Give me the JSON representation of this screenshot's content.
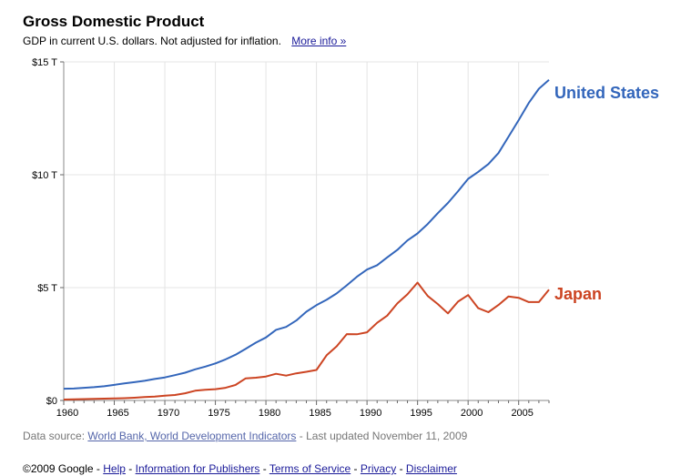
{
  "header": {
    "title": "Gross Domestic Product",
    "subtitle": "GDP in current U.S. dollars. Not adjusted for inflation.",
    "more_info_link": "More info »"
  },
  "source": {
    "prefix": "Data source:",
    "link": "World Bank, World Development Indicators",
    "suffix": "- Last updated November 11, 2009"
  },
  "footer": {
    "copyright": "©2009 Google",
    "links": [
      "Help",
      "Information for Publishers",
      "Terms of Service",
      "Privacy",
      "Disclaimer"
    ]
  },
  "chart_data": {
    "type": "line",
    "title": "Gross Domestic Product",
    "x": [
      1960,
      1961,
      1962,
      1963,
      1964,
      1965,
      1966,
      1967,
      1968,
      1969,
      1970,
      1971,
      1972,
      1973,
      1974,
      1975,
      1976,
      1977,
      1978,
      1979,
      1980,
      1981,
      1982,
      1983,
      1984,
      1985,
      1986,
      1987,
      1988,
      1989,
      1990,
      1991,
      1992,
      1993,
      1994,
      1995,
      1996,
      1997,
      1998,
      1999,
      2000,
      2001,
      2002,
      2003,
      2004,
      2005,
      2006,
      2007,
      2008
    ],
    "xlim": [
      1960,
      2008
    ],
    "ylim": [
      0,
      15
    ],
    "y_ticks": [
      0,
      5,
      10,
      15
    ],
    "y_tick_labels": [
      "$0",
      "$5 T",
      "$10 T",
      "$15 T"
    ],
    "x_ticks": [
      1960,
      1965,
      1970,
      1975,
      1980,
      1985,
      1990,
      1995,
      2000,
      2005
    ],
    "x_tick_labels": [
      "1960",
      "1965",
      "1970",
      "1975",
      "1980",
      "1985",
      "1990",
      "1995",
      "2000",
      "2005"
    ],
    "grid": true,
    "legend": "inline-right",
    "series": [
      {
        "name": "United States",
        "color": "#3366bb",
        "values": [
          0.52,
          0.53,
          0.56,
          0.59,
          0.63,
          0.69,
          0.76,
          0.81,
          0.87,
          0.95,
          1.02,
          1.12,
          1.23,
          1.38,
          1.5,
          1.64,
          1.82,
          2.03,
          2.29,
          2.56,
          2.79,
          3.13,
          3.26,
          3.54,
          3.93,
          4.22,
          4.46,
          4.74,
          5.1,
          5.48,
          5.8,
          5.99,
          6.34,
          6.67,
          7.09,
          7.4,
          7.82,
          8.3,
          8.75,
          9.27,
          9.82,
          10.13,
          10.47,
          10.96,
          11.69,
          12.42,
          13.18,
          13.81,
          14.2
        ]
      },
      {
        "name": "Japan",
        "color": "#cc4422",
        "values": [
          0.04,
          0.05,
          0.06,
          0.07,
          0.08,
          0.09,
          0.1,
          0.12,
          0.15,
          0.17,
          0.21,
          0.24,
          0.32,
          0.43,
          0.47,
          0.5,
          0.56,
          0.69,
          0.98,
          1.01,
          1.06,
          1.18,
          1.1,
          1.2,
          1.27,
          1.35,
          2.0,
          2.4,
          2.94,
          2.93,
          3.02,
          3.44,
          3.76,
          4.3,
          4.7,
          5.22,
          4.63,
          4.27,
          3.86,
          4.38,
          4.67,
          4.09,
          3.91,
          4.23,
          4.61,
          4.55,
          4.36,
          4.36,
          4.91
        ]
      }
    ]
  }
}
